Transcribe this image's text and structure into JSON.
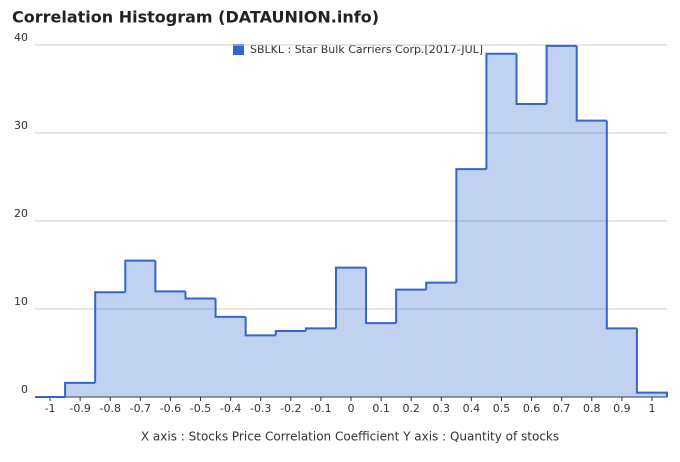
{
  "chart_data": {
    "type": "histogram",
    "title": "Correlation Histogram (DATAUNION.info)",
    "x_label": "X axis : Stocks Price Correlation Coefficient  Y axis : Quantity of stocks",
    "series_name": "SBLKL : Star Bulk Carriers Corp.[2017-JUL]",
    "color": "#3366cc",
    "bins": [
      -1.05,
      -0.95,
      -0.85,
      -0.75,
      -0.65,
      -0.55,
      -0.45,
      -0.35,
      -0.25,
      -0.15,
      -0.05,
      0.05,
      0.15,
      0.25,
      0.35,
      0.45,
      0.55,
      0.65,
      0.75,
      0.85,
      0.95,
      1.05
    ],
    "counts": [
      0,
      1.6,
      11.9,
      15.5,
      12,
      11.2,
      9.1,
      7,
      7.5,
      7.8,
      14.7,
      8.4,
      12.2,
      13,
      25.9,
      39,
      33.3,
      39.9,
      31.4,
      7.8,
      0.5
    ],
    "xlim": [
      -1.05,
      1.05
    ],
    "xticks": [
      -1,
      -0.9,
      -0.8,
      -0.7,
      -0.6,
      -0.5,
      -0.4,
      -0.3,
      -0.2,
      -0.1,
      0,
      0.1,
      0.2,
      0.3,
      0.4,
      0.5,
      0.6,
      0.7,
      0.8,
      0.9,
      1
    ],
    "ylim": [
      0,
      40
    ],
    "yticks": [
      0,
      10,
      20,
      30,
      40
    ],
    "grid": true
  }
}
